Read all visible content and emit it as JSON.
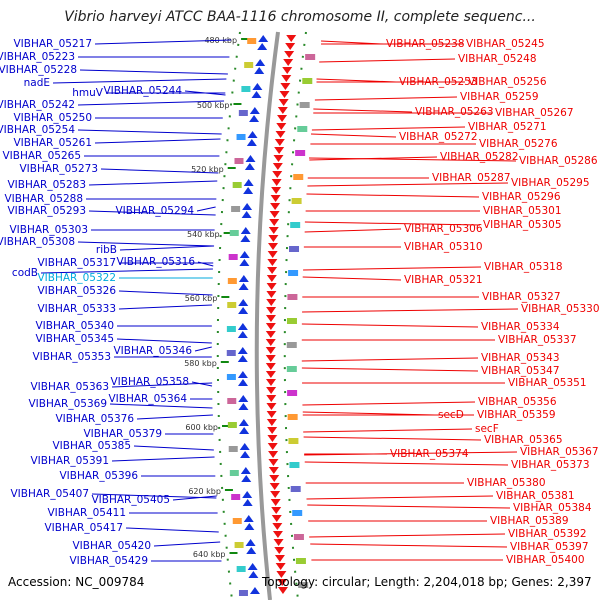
{
  "header": {
    "title": "Vibrio harveyi ATCC BAA-1116 chromosome II, complete sequenc..."
  },
  "footer": {
    "accession": "Accession: NC_009784",
    "topology": "Topology: circular; Length: 2,204,018 bp; Genes: 2,397"
  },
  "colors": {
    "forward_label": "#0000cc",
    "reverse_label": "#ee0000",
    "highlight_label": "#00aadd",
    "backbone": "#888888",
    "tick_marks": "#008800"
  },
  "ruler": {
    "ticks_kbp": [
      480,
      500,
      520,
      540,
      560,
      580,
      600,
      620,
      640
    ],
    "tick_labels": [
      "480 kbp",
      "500 kbp",
      "520 kbp",
      "540 kbp",
      "560 kbp",
      "580 kbp",
      "600 kbp",
      "620 kbp",
      "640 kbp"
    ]
  },
  "forward_labels": [
    "VIBHAR_05217",
    "VIBHAR_05223",
    "VIBHAR_05228",
    "nadE",
    "hmuV",
    "VIBHAR_05244",
    "VIBHAR_05242",
    "VIBHAR_05250",
    "VIBHAR_05254",
    "VIBHAR_05261",
    "VIBHAR_05265",
    "VIBHAR_05273",
    "VIBHAR_05283",
    "VIBHAR_05288",
    "VIBHAR_05293",
    "VIBHAR_05294",
    "VIBHAR_05303",
    "VIBHAR_05308",
    "ribB",
    "VIBHAR_05317",
    "VIBHAR_05316",
    "codB",
    "VIBHAR_05322",
    "VIBHAR_05326",
    "VIBHAR_05333",
    "VIBHAR_05340",
    "VIBHAR_05345",
    "VIBHAR_05346",
    "VIBHAR_05353",
    "VIBHAR_05358",
    "VIBHAR_05363",
    "VIBHAR_05364",
    "VIBHAR_05369",
    "VIBHAR_05376",
    "VIBHAR_05379",
    "VIBHAR_05385",
    "VIBHAR_05391",
    "VIBHAR_05396",
    "VIBHAR_05407",
    "VIBHAR_05405",
    "VIBHAR_05411",
    "VIBHAR_05417",
    "VIBHAR_05420",
    "VIBHAR_05429"
  ],
  "reverse_labels": [
    "VIBHAR_05238",
    "VIBHAR_05245",
    "VIBHAR_05248",
    "VIBHAR_05253",
    "VIBHAR_05256",
    "VIBHAR_05259",
    "VIBHAR_05263",
    "VIBHAR_05267",
    "VIBHAR_05271",
    "VIBHAR_05272",
    "VIBHAR_05276",
    "VIBHAR_05282",
    "VIBHAR_05286",
    "VIBHAR_05287",
    "VIBHAR_05295",
    "VIBHAR_05296",
    "VIBHAR_05301",
    "VIBHAR_05306",
    "VIBHAR_05305",
    "VIBHAR_05310",
    "VIBHAR_05318",
    "VIBHAR_05321",
    "VIBHAR_05327",
    "VIBHAR_05330",
    "VIBHAR_05334",
    "VIBHAR_05337",
    "VIBHAR_05343",
    "VIBHAR_05347",
    "VIBHAR_05351",
    "VIBHAR_05356",
    "secD",
    "VIBHAR_05359",
    "secF",
    "VIBHAR_05365",
    "VIBHAR_05374",
    "VIBHAR_05367",
    "VIBHAR_05373",
    "VIBHAR_05380",
    "VIBHAR_05381",
    "VIBHAR_05384",
    "VIBHAR_05389",
    "VIBHAR_05392",
    "VIBHAR_05397",
    "VIBHAR_05400"
  ]
}
